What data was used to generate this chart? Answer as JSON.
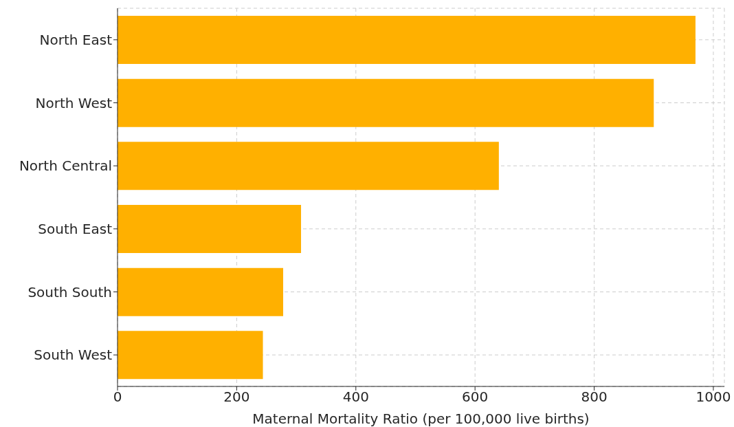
{
  "chart_data": {
    "type": "bar",
    "orientation": "horizontal",
    "xlabel": "Maternal Mortality Ratio (per 100,000 live births)",
    "categories": [
      "North East",
      "North West",
      "North Central",
      "South East",
      "South South",
      "South West"
    ],
    "values": [
      970,
      900,
      640,
      308,
      278,
      244
    ],
    "color": "#ffb000",
    "xlim": [
      0,
      1018.5
    ],
    "xticks": [
      0,
      200,
      400,
      600,
      800,
      1000
    ],
    "grid": true
  }
}
